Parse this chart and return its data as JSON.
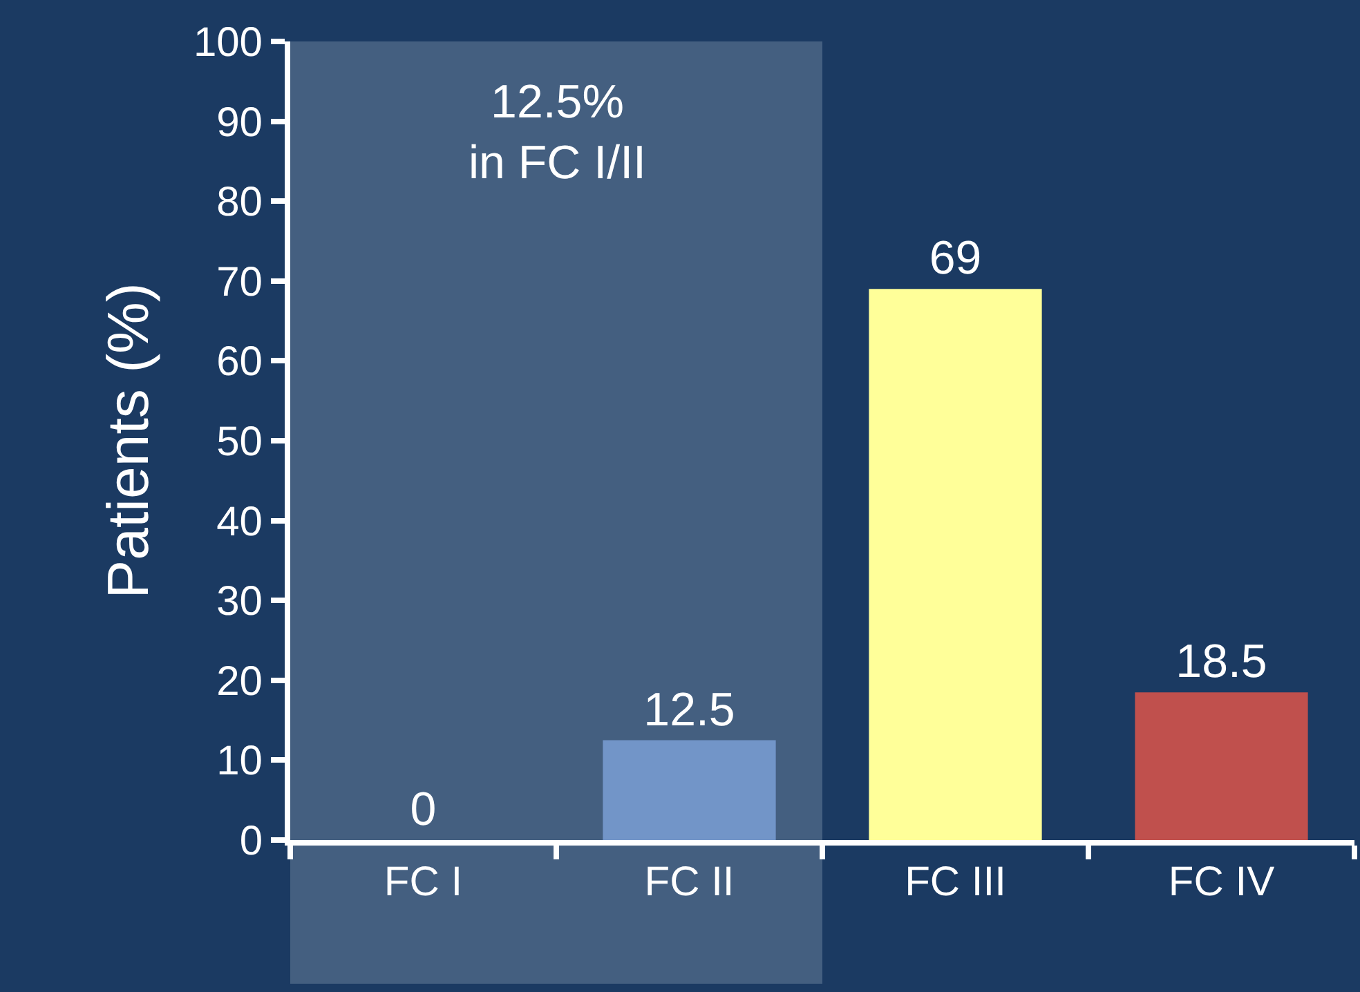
{
  "chart_data": {
    "type": "bar",
    "ylabel": "Patients (%)",
    "categories": [
      "FC I",
      "FC II",
      "FC III",
      "FC IV"
    ],
    "values": [
      0,
      12.5,
      69,
      18.5
    ],
    "colors": [
      "#7295c8",
      "#7295c8",
      "#ffff99",
      "#c0504d"
    ],
    "ylim": [
      0,
      100
    ],
    "yticks": [
      0,
      10,
      20,
      30,
      40,
      50,
      60,
      70,
      80,
      90,
      100
    ],
    "data_labels": true,
    "grid": false,
    "bands": [
      {
        "axis": "x",
        "from": "FC I",
        "to": "FC II",
        "label": "12.5%\nin FC I/II",
        "color": "#445f80"
      }
    ]
  }
}
